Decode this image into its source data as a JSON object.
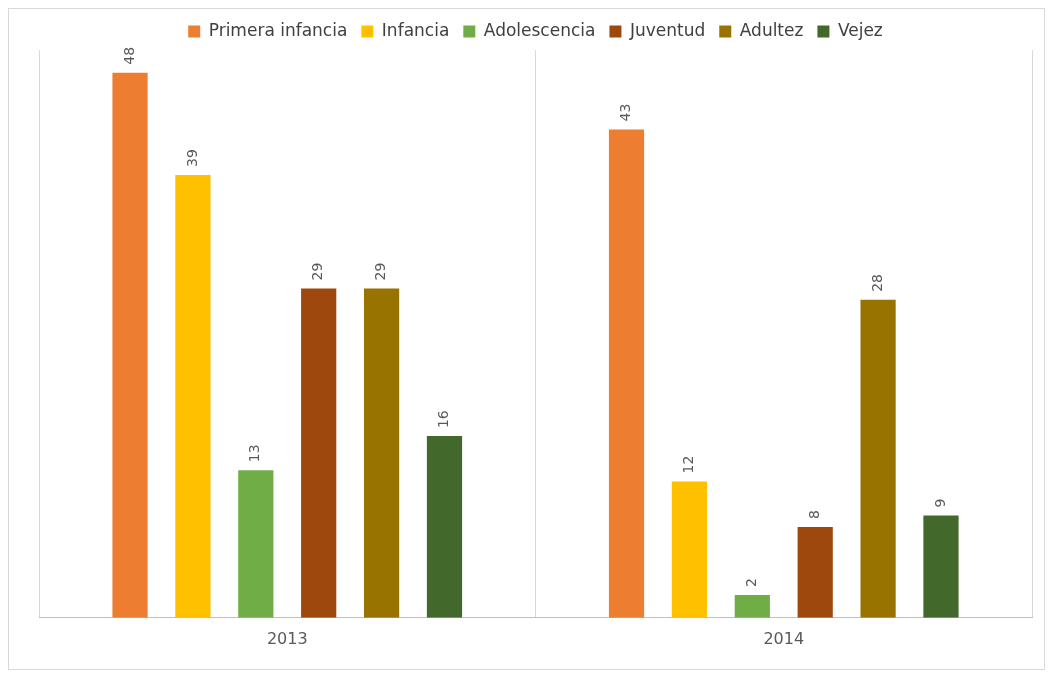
{
  "chart_data": {
    "type": "bar",
    "categories": [
      "2013",
      "2014"
    ],
    "series": [
      {
        "name": "Primera infancia",
        "color": "#ed7d31",
        "values": [
          48,
          43
        ]
      },
      {
        "name": "Infancia",
        "color": "#ffc000",
        "values": [
          39,
          12
        ]
      },
      {
        "name": "Adolescencia",
        "color": "#70ad47",
        "values": [
          13,
          2
        ]
      },
      {
        "name": "Juventud",
        "color": "#9e480e",
        "values": [
          29,
          8
        ]
      },
      {
        "name": "Adultez",
        "color": "#997300",
        "values": [
          29,
          28
        ]
      },
      {
        "name": "Vejez",
        "color": "#43682b",
        "values": [
          16,
          9
        ]
      }
    ],
    "data_labels": true,
    "legend": "top",
    "grid": "x",
    "tick_labels": "x"
  }
}
